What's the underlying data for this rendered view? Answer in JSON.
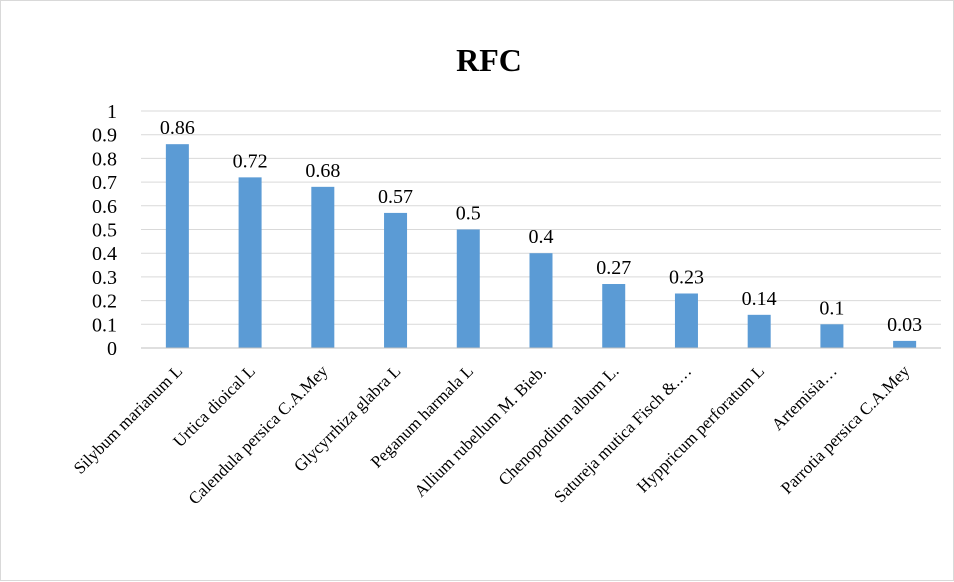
{
  "chart_data": {
    "type": "bar",
    "title": "RFC",
    "xlabel": "",
    "ylabel": "",
    "ylim": [
      0,
      1
    ],
    "yticks": [
      "0",
      "0.1",
      "0.2",
      "0.3",
      "0.4",
      "0.5",
      "0.6",
      "0.7",
      "0.8",
      "0.9",
      "1"
    ],
    "grid": true,
    "legend": "none",
    "categories": [
      "Silybum marianum L",
      "Urtica dioical L",
      "Calendula persica C.A.Mey",
      "Glycyrrhiza glabra L",
      "Peganum harmala L",
      "Allium rubellum M. Bieb.",
      "Chenopodium album L.",
      "Satureja mutica Fisch &.…",
      "Hyppricum perforatum L",
      "Artemisia…",
      "Parrotia persica C.A.Mey"
    ],
    "values": [
      0.86,
      0.72,
      0.68,
      0.57,
      0.5,
      0.4,
      0.27,
      0.23,
      0.14,
      0.1,
      0.03
    ],
    "data_labels": [
      "0.86",
      "0.72",
      "0.68",
      "0.57",
      "0.5",
      "0.4",
      "0.27",
      "0.23",
      "0.14",
      "0.1",
      "0.03"
    ],
    "colors": {
      "bar": "#5b9bd5",
      "grid": "#d9d9d9",
      "axis": "#bfbfbf"
    }
  }
}
